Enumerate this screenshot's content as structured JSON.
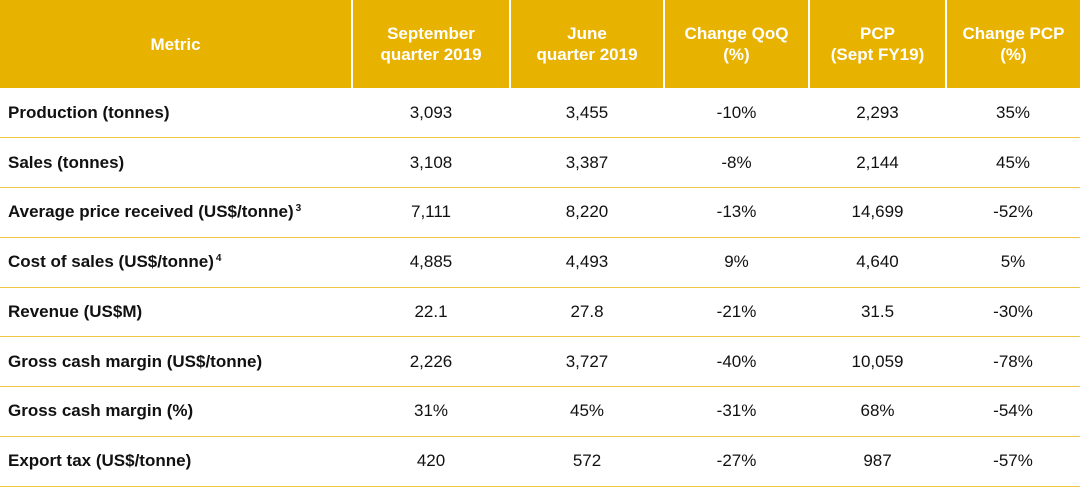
{
  "header": {
    "metric": "Metric",
    "col1": [
      "September",
      "quarter 2019"
    ],
    "col2": [
      "June",
      "quarter 2019"
    ],
    "col3": [
      "Change QoQ",
      "(%)"
    ],
    "col4": [
      "PCP",
      "(Sept FY19)"
    ],
    "col5": [
      "Change PCP",
      "(%)"
    ]
  },
  "rows": [
    {
      "metric": "Production (tonnes)",
      "sup": "",
      "values": [
        "3,093",
        "3,455",
        "-10%",
        "2,293",
        "35%"
      ]
    },
    {
      "metric": "Sales (tonnes)",
      "sup": "",
      "values": [
        "3,108",
        "3,387",
        "-8%",
        "2,144",
        "45%"
      ]
    },
    {
      "metric": "Average price received (US$/tonne)",
      "sup": "3",
      "values": [
        "7,111",
        "8,220",
        "-13%",
        "14,699",
        "-52%"
      ]
    },
    {
      "metric": "Cost of sales (US$/tonne)",
      "sup": "4",
      "values": [
        "4,885",
        "4,493",
        "9%",
        "4,640",
        "5%"
      ]
    },
    {
      "metric": "Revenue (US$M)",
      "sup": "",
      "values": [
        "22.1",
        "27.8",
        "-21%",
        "31.5",
        "-30%"
      ]
    },
    {
      "metric": "Gross cash margin (US$/tonne)",
      "sup": "",
      "values": [
        "2,226",
        "3,727",
        "-40%",
        "10,059",
        "-78%"
      ]
    },
    {
      "metric": "Gross cash margin (%)",
      "sup": "",
      "values": [
        "31%",
        "45%",
        "-31%",
        "68%",
        "-54%"
      ]
    },
    {
      "metric": "Export tax (US$/tonne)",
      "sup": "",
      "values": [
        "420",
        "572",
        "-27%",
        "987",
        "-57%"
      ]
    }
  ],
  "colors": {
    "header_bg": "#e8b200",
    "header_text": "#ffffff",
    "row_border": "#f0c74a"
  }
}
